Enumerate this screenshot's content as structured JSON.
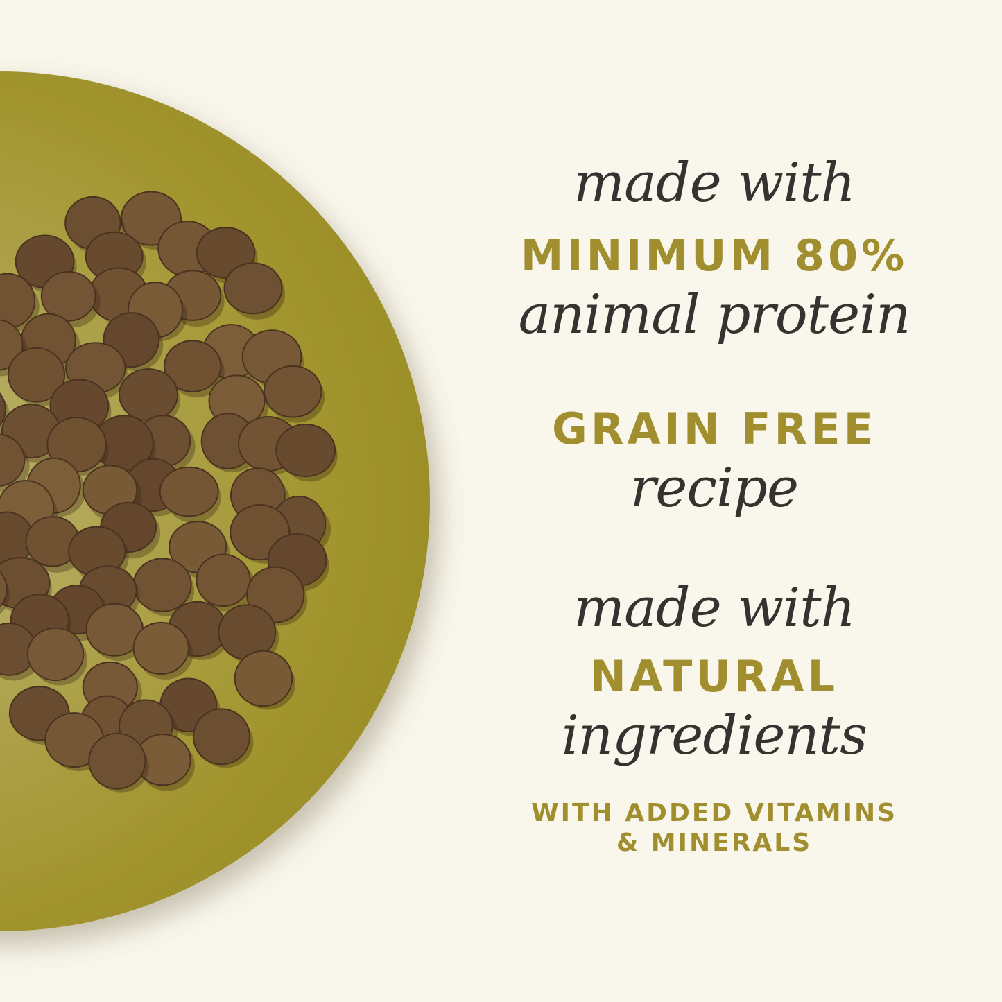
{
  "colors": {
    "background": "#f9f6ec",
    "plate": "#a99d45",
    "accent_text": "#a18f2f",
    "script_text": "#353230",
    "kibble": "#6b4a30"
  },
  "claims": [
    {
      "script_top": "made with",
      "caps": "MINIMUM 80%",
      "script_bottom": "animal protein"
    },
    {
      "caps": "GRAIN FREE",
      "script_bottom": "recipe"
    },
    {
      "script_top": "made with",
      "caps": "NATURAL",
      "script_bottom": "ingredients",
      "note_line1": "WITH ADDED VITAMINS",
      "note_line2": "& MINERALS"
    }
  ]
}
